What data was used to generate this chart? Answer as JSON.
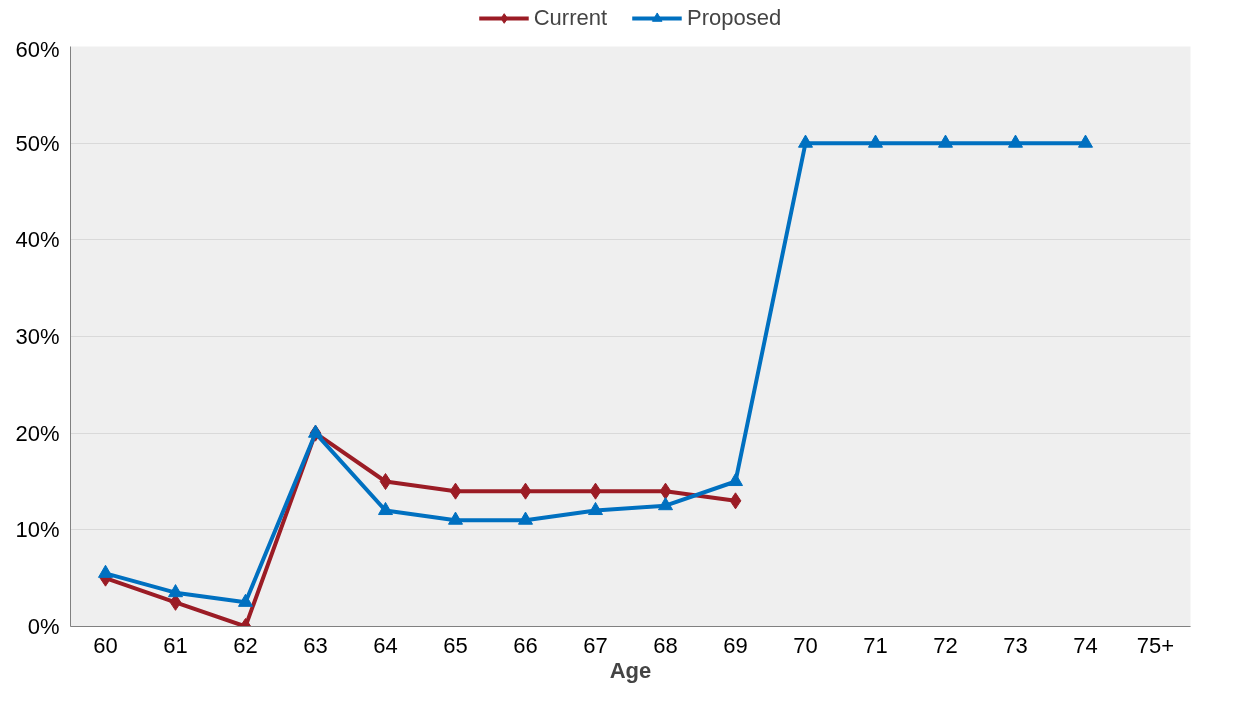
{
  "chart_data": {
    "type": "line",
    "xlabel": "Age",
    "categories": [
      "60",
      "61",
      "62",
      "63",
      "64",
      "65",
      "66",
      "67",
      "68",
      "69",
      "70",
      "71",
      "72",
      "73",
      "74",
      "75+"
    ],
    "series": [
      {
        "name": "Current",
        "color": "#9b1c25",
        "marker": "diamond",
        "values": [
          5,
          2.5,
          0,
          20,
          15,
          14,
          14,
          14,
          14,
          13,
          null,
          null,
          null,
          null,
          null,
          null
        ]
      },
      {
        "name": "Proposed",
        "color": "#0070c0",
        "marker": "triangle",
        "values": [
          5.5,
          3.5,
          2.5,
          20,
          12,
          11,
          11,
          12,
          12.5,
          15,
          50,
          50,
          50,
          50,
          50,
          null
        ]
      }
    ],
    "ylim": [
      0,
      60
    ],
    "yticks": [
      {
        "value": 0,
        "label": "0%"
      },
      {
        "value": 10,
        "label": "10%"
      },
      {
        "value": 20,
        "label": "20%"
      },
      {
        "value": 30,
        "label": "30%"
      },
      {
        "value": 40,
        "label": "40%"
      },
      {
        "value": 50,
        "label": "50%"
      },
      {
        "value": 60,
        "label": "60%"
      }
    ],
    "grid": "y",
    "legend": "top",
    "line_style": "solid"
  }
}
